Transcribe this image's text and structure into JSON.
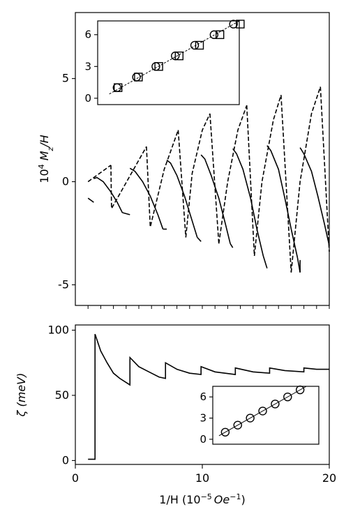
{
  "chart_data": [
    {
      "type": "line",
      "panel": "top-main",
      "ylabel": "10^4 M_z/H",
      "xlim": [
        0,
        20
      ],
      "ylim": [
        -6.0,
        8.2
      ],
      "yticks": [
        5,
        0,
        -5
      ],
      "ytick_labels": [
        "5",
        "0",
        "-5"
      ],
      "x_minor_ticks": [
        1,
        2,
        3,
        4,
        5,
        6,
        7,
        8,
        9,
        10,
        11,
        12,
        13,
        14,
        15,
        16,
        17,
        18,
        19,
        20
      ],
      "series": [
        {
          "style": "solid",
          "segments": [
            {
              "x": [
                1.0,
                1.45
              ],
              "y": [
                -0.8,
                -1.0
              ]
            },
            {
              "x": [
                1.45,
                1.7,
                2.2,
                2.8,
                3.3,
                3.7
              ],
              "y": [
                0.15,
                0.2,
                0.0,
                -0.5,
                -1.0,
                -1.5
              ]
            },
            {
              "x": [
                3.7,
                4.3
              ],
              "y": [
                -1.5,
                -1.6
              ]
            },
            {
              "x": [
                4.3,
                4.7,
                5.3,
                5.9,
                6.5,
                6.9
              ],
              "y": [
                0.65,
                0.5,
                0.0,
                -0.7,
                -1.6,
                -2.3
              ]
            },
            {
              "x": [
                6.9,
                7.2
              ],
              "y": [
                -2.3,
                -2.3
              ]
            },
            {
              "x": [
                7.2,
                7.5,
                8.0,
                8.6,
                9.1,
                9.6
              ],
              "y": [
                1.05,
                0.9,
                0.3,
                -0.7,
                -1.7,
                -2.7
              ]
            },
            {
              "x": [
                9.6,
                9.9
              ],
              "y": [
                -2.7,
                -2.9
              ]
            },
            {
              "x": [
                9.9,
                10.2,
                10.7,
                11.3,
                11.8,
                12.2
              ],
              "y": [
                1.3,
                1.1,
                0.3,
                -0.8,
                -2.0,
                -3.0
              ]
            },
            {
              "x": [
                12.2,
                12.4
              ],
              "y": [
                -3.0,
                -3.2
              ]
            },
            {
              "x": [
                12.4,
                12.7,
                13.2,
                13.8,
                14.3,
                14.8
              ],
              "y": [
                1.6,
                1.35,
                0.6,
                -0.8,
                -2.3,
                -3.6
              ]
            },
            {
              "x": [
                14.8,
                15.1
              ],
              "y": [
                -3.6,
                -4.2
              ]
            },
            {
              "x": [
                15.1,
                15.4,
                16.0,
                16.5,
                17.0,
                17.5
              ],
              "y": [
                1.75,
                1.5,
                0.6,
                -0.8,
                -2.3,
                -3.7
              ]
            },
            {
              "x": [
                17.5,
                17.7
              ],
              "y": [
                -3.7,
                -4.4
              ]
            },
            {
              "x": [
                17.7,
                18.0,
                18.6,
                19.1,
                19.6,
                20.0
              ],
              "y": [
                1.65,
                1.35,
                0.5,
                -0.7,
                -2.0,
                -3.1
              ]
            },
            {
              "x": [
                17.7,
                17.7
              ],
              "y": [
                -4.4,
                -3.8
              ]
            }
          ]
        },
        {
          "style": "dashed",
          "segments": [
            {
              "x": [
                1.0,
                2.8
              ],
              "y": [
                0.0,
                0.8
              ]
            },
            {
              "x": [
                2.8,
                2.85,
                5.6
              ],
              "y": [
                0.8,
                -1.3,
                1.7
              ]
            },
            {
              "x": [
                5.6,
                5.9,
                7.0,
                8.1
              ],
              "y": [
                1.7,
                -2.2,
                0.6,
                2.5
              ]
            },
            {
              "x": [
                8.1,
                8.7
              ],
              "y": [
                2.5,
                -2.7
              ]
            },
            {
              "x": [
                8.7,
                9.2,
                10.0,
                10.6
              ],
              "y": [
                -2.7,
                0.4,
                2.5,
                3.3
              ]
            },
            {
              "x": [
                10.6,
                11.3
              ],
              "y": [
                3.3,
                -3.0
              ]
            },
            {
              "x": [
                11.3,
                12.0,
                12.8,
                13.5
              ],
              "y": [
                -3.0,
                0.0,
                2.5,
                3.7
              ]
            },
            {
              "x": [
                13.5,
                14.1
              ],
              "y": [
                3.7,
                -3.6
              ]
            },
            {
              "x": [
                14.1,
                14.7,
                15.6,
                16.2
              ],
              "y": [
                -3.6,
                0.0,
                3.0,
                4.2
              ]
            },
            {
              "x": [
                16.2,
                17.0
              ],
              "y": [
                4.2,
                -4.4
              ]
            },
            {
              "x": [
                17.0,
                17.7,
                18.6,
                19.3
              ],
              "y": [
                -4.4,
                0.0,
                3.3,
                4.6
              ]
            },
            {
              "x": [
                19.3,
                20.0
              ],
              "y": [
                4.6,
                -3.4
              ]
            }
          ]
        }
      ]
    },
    {
      "type": "scatter",
      "panel": "top-inset",
      "xlim": [
        0,
        7.3
      ],
      "ylim": [
        -0.6,
        7.3
      ],
      "yticks": [
        6,
        3,
        0
      ],
      "ytick_labels": [
        "6",
        "3",
        "0"
      ],
      "series": [
        {
          "marker": "circle",
          "x": [
            1,
            2,
            3,
            4,
            5,
            6,
            7
          ],
          "y": [
            1,
            2,
            3,
            4,
            5,
            6,
            7
          ]
        },
        {
          "marker": "square",
          "x": [
            1.05,
            2.1,
            3.15,
            4.2,
            5.25,
            6.3,
            7.35
          ],
          "y": [
            1,
            2,
            3,
            4,
            5,
            6,
            7
          ]
        }
      ],
      "fit_line": {
        "style": "dashed",
        "x": [
          0.6,
          7.3
        ],
        "y": [
          0.4,
          7.3
        ]
      }
    },
    {
      "type": "line",
      "panel": "bottom-main",
      "xlabel": "1/H (10^-5 Oe^-1)",
      "ylabel": "ζ (meV)",
      "xlim": [
        0,
        20
      ],
      "ylim": [
        -3,
        104
      ],
      "xticks": [
        0,
        10,
        20
      ],
      "xtick_labels": [
        "0",
        "10",
        "20"
      ],
      "yticks": [
        100,
        50,
        0
      ],
      "ytick_labels": [
        "100",
        "50",
        "0"
      ],
      "series": [
        {
          "style": "solid",
          "x": [
            1.0,
            1.55,
            1.55,
            2.0,
            2.5,
            3.0,
            3.5,
            4.3,
            4.3,
            5.0,
            5.8,
            6.6,
            7.1,
            7.1,
            8.0,
            9.0,
            9.9,
            9.9,
            11.0,
            12.6,
            12.6,
            14.0,
            15.3,
            15.3,
            16.5,
            18.0,
            18.0,
            19.0,
            20.0
          ],
          "y": [
            1,
            1,
            97,
            84,
            75,
            67,
            63,
            58,
            79,
            72,
            68,
            64,
            63,
            75,
            70,
            67,
            66,
            72,
            68,
            66,
            71,
            68,
            67,
            71,
            69,
            68,
            71,
            70,
            70
          ]
        }
      ]
    },
    {
      "type": "scatter",
      "panel": "bottom-inset",
      "xlim": [
        0,
        8.5
      ],
      "ylim": [
        -0.7,
        7.5
      ],
      "yticks": [
        6,
        3,
        0
      ],
      "ytick_labels": [
        "6",
        "3",
        "0"
      ],
      "series": [
        {
          "marker": "circle",
          "x": [
            1,
            2,
            3,
            4,
            5,
            6,
            7
          ],
          "y": [
            1,
            2,
            3,
            4,
            5,
            6,
            7
          ]
        }
      ],
      "fit_line": {
        "style": "solid",
        "x": [
          0.5,
          7.5
        ],
        "y": [
          0.5,
          7.5
        ]
      }
    }
  ],
  "labels": {
    "top_ylabel_base": "10",
    "top_ylabel_exp": "4",
    "top_ylabel_rest": " M",
    "top_ylabel_sub": "z",
    "top_ylabel_tail": "/H",
    "bottom_ylabel": "ζ (meV)",
    "xlabel_base": "1/H (10",
    "xlabel_exp": "−5",
    "xlabel_unit": "Oe",
    "xlabel_unit_exp": "−1",
    "xlabel_close": ")"
  }
}
